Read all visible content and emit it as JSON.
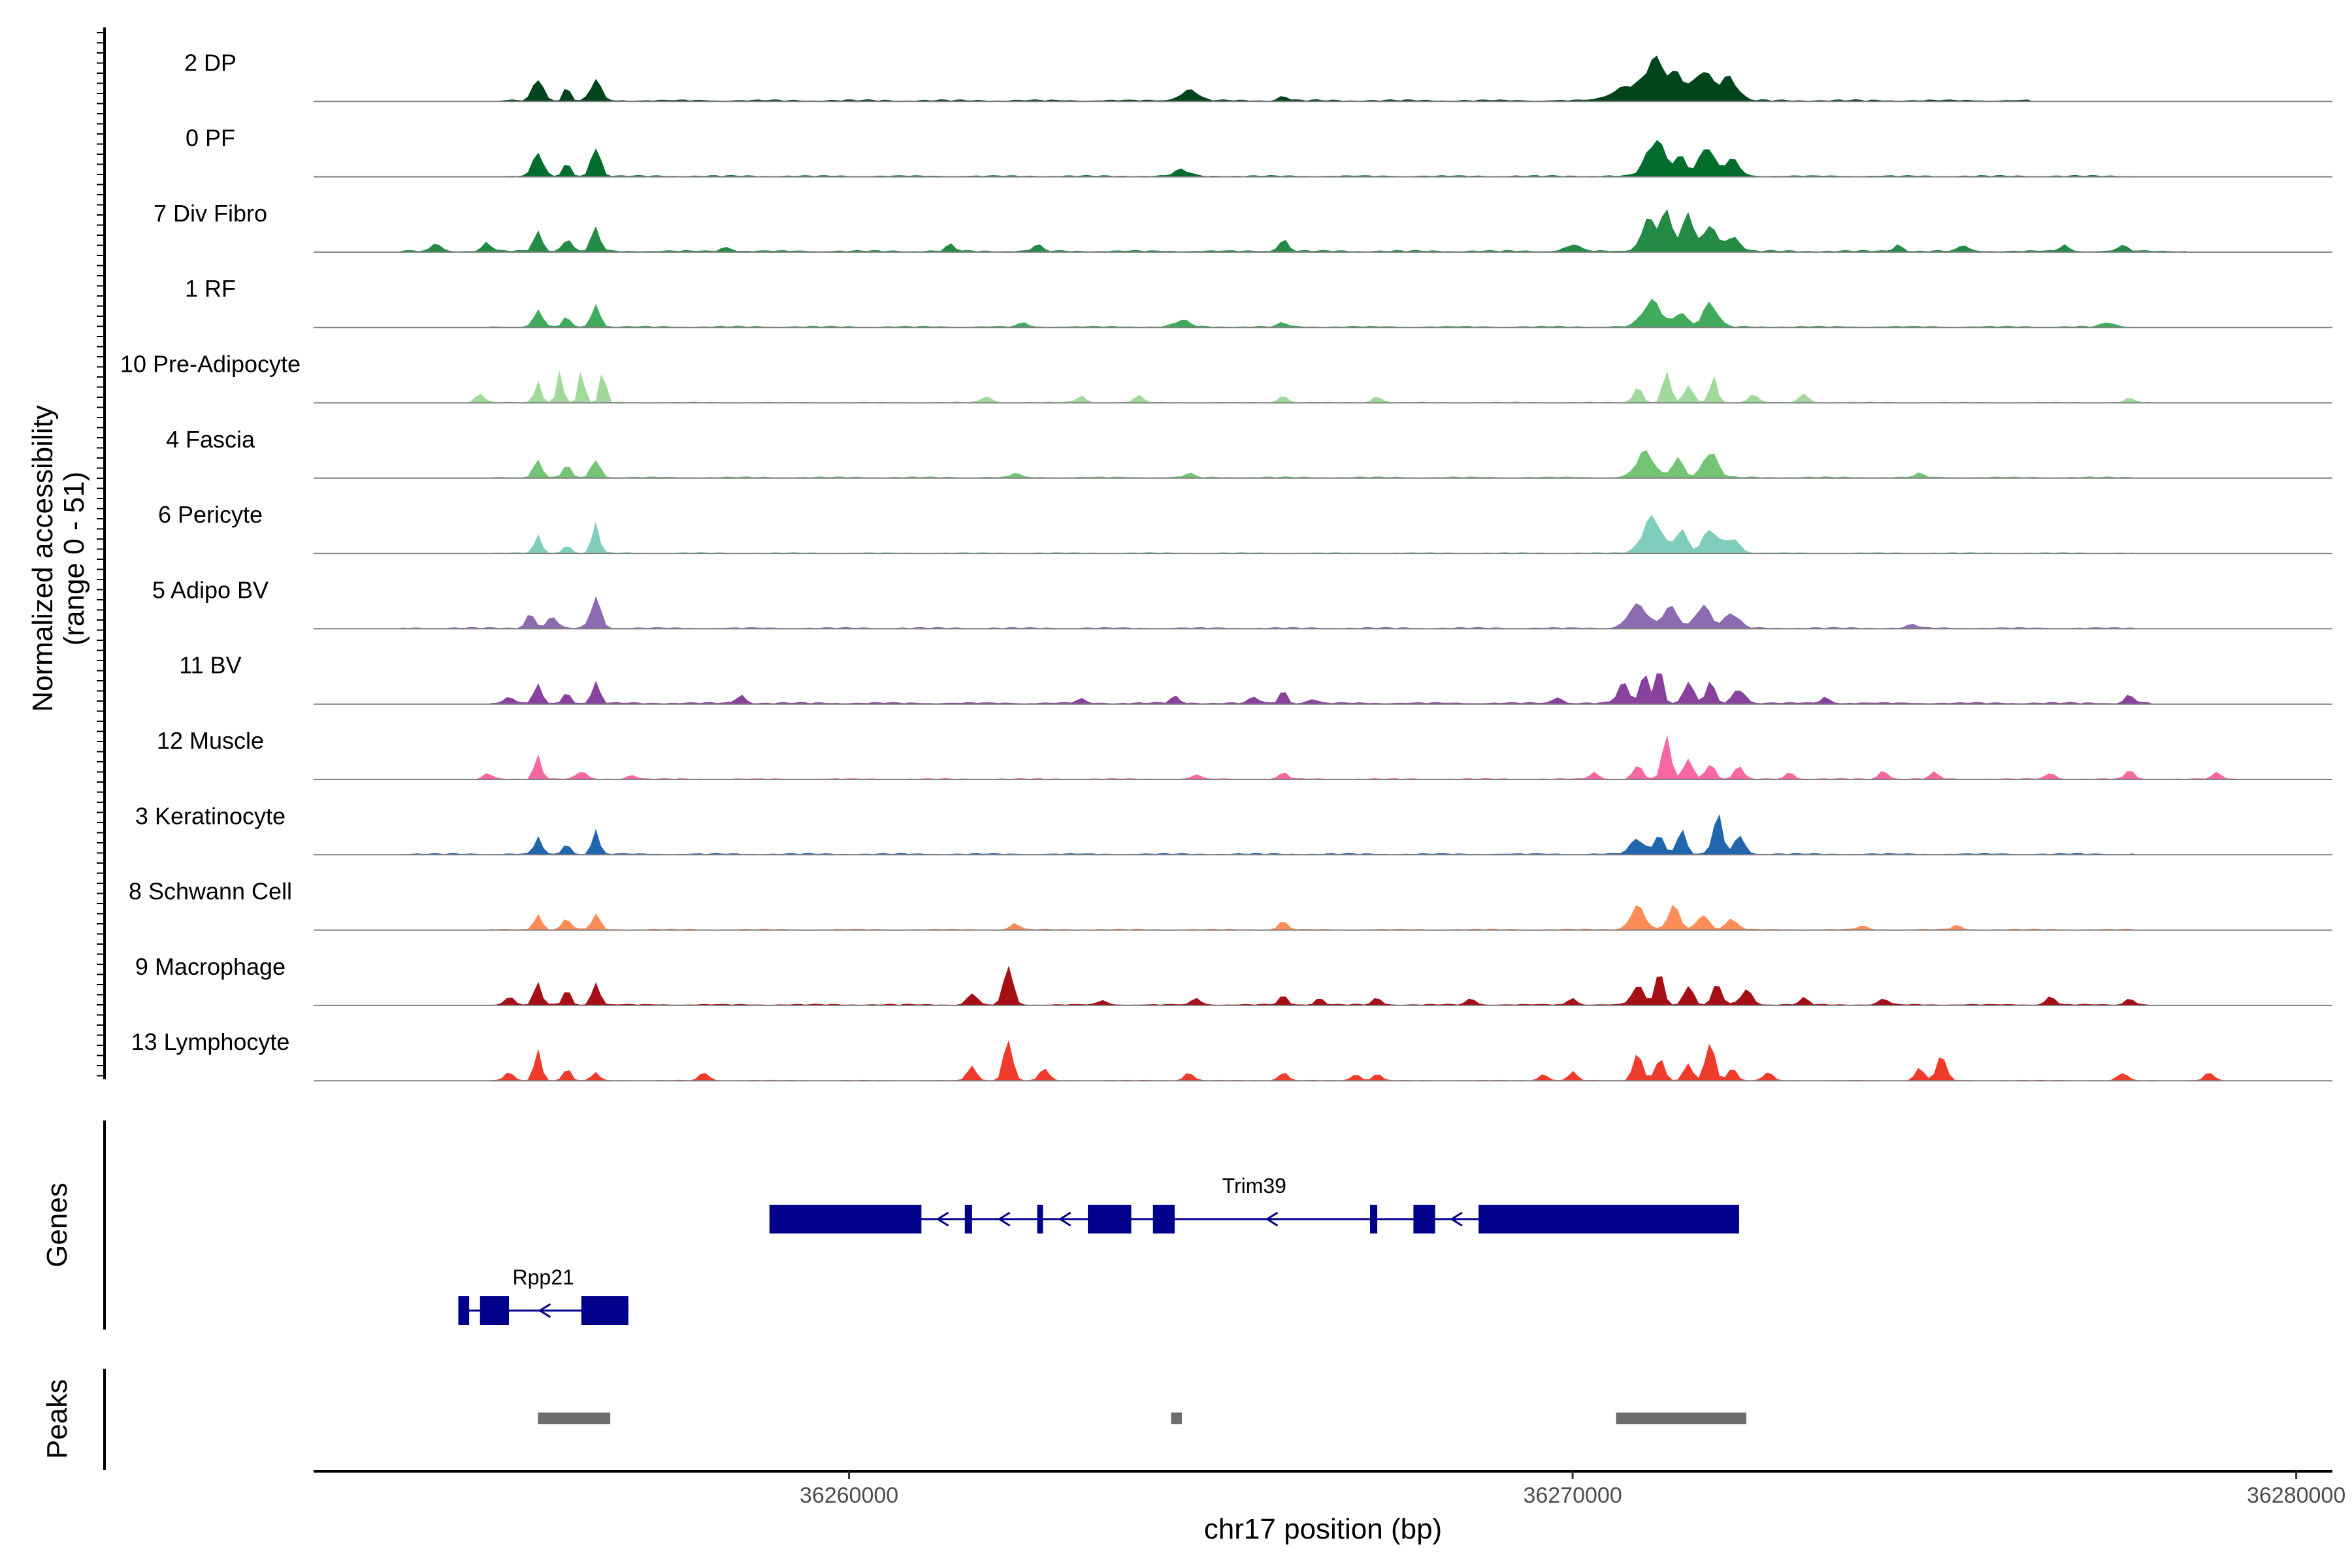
{
  "chart_data": {
    "type": "area",
    "title": "",
    "xlabel": "chr17 position (bp)",
    "ylabel_line1": "Normalized accessibility",
    "ylabel_line2": "(range 0 - 51)",
    "y_range": [
      0,
      51
    ],
    "xlim": [
      36252600,
      36280500
    ],
    "x_ticks": [
      36260000,
      36270000,
      36280000
    ],
    "x_tick_labels": [
      "36260000",
      "36270000",
      "36280000"
    ],
    "tracks": [
      {
        "label": "2 DP",
        "color": "#00441b",
        "peaks": [
          [
            36255700,
            0.55,
            70
          ],
          [
            36256100,
            0.34,
            40
          ],
          [
            36256500,
            0.5,
            70
          ],
          [
            36264700,
            0.25,
            120
          ],
          [
            36266000,
            0.1,
            60
          ],
          [
            36270800,
            0.36,
            220
          ],
          [
            36271150,
            0.9,
            120
          ],
          [
            36271450,
            0.6,
            100
          ],
          [
            36271800,
            0.7,
            120
          ],
          [
            36272150,
            0.55,
            120
          ]
        ],
        "noise": 0.05,
        "span": [
          36255200,
          36276300
        ]
      },
      {
        "label": "0 PF",
        "color": "#006d2c",
        "peaks": [
          [
            36255700,
            0.55,
            70
          ],
          [
            36256100,
            0.3,
            50
          ],
          [
            36256500,
            0.78,
            60
          ],
          [
            36264600,
            0.15,
            100
          ],
          [
            36271150,
            0.85,
            130
          ],
          [
            36271500,
            0.45,
            80
          ],
          [
            36271850,
            0.7,
            100
          ],
          [
            36272200,
            0.4,
            100
          ]
        ],
        "noise": 0.04,
        "span": [
          36255200,
          36277800
        ]
      },
      {
        "label": "7 Div Fibro",
        "color": "#238b45",
        "peaks": [
          [
            36254300,
            0.2,
            60
          ],
          [
            36255000,
            0.2,
            60
          ],
          [
            36255700,
            0.45,
            60
          ],
          [
            36256100,
            0.3,
            60
          ],
          [
            36256500,
            0.55,
            60
          ],
          [
            36258300,
            0.12,
            60
          ],
          [
            36261400,
            0.15,
            60
          ],
          [
            36262600,
            0.15,
            60
          ],
          [
            36266000,
            0.3,
            60
          ],
          [
            36270000,
            0.15,
            100
          ],
          [
            36271050,
            0.75,
            100
          ],
          [
            36271300,
            0.9,
            80
          ],
          [
            36271600,
            0.9,
            80
          ],
          [
            36271900,
            0.65,
            80
          ],
          [
            36272200,
            0.35,
            100
          ],
          [
            36274500,
            0.15,
            60
          ],
          [
            36275400,
            0.15,
            60
          ],
          [
            36276800,
            0.15,
            60
          ],
          [
            36277600,
            0.15,
            60
          ]
        ],
        "noise": 0.05,
        "span": [
          36253800,
          36278500
        ]
      },
      {
        "label": "1 RF",
        "color": "#41ab5d",
        "peaks": [
          [
            36255700,
            0.4,
            60
          ],
          [
            36256100,
            0.25,
            50
          ],
          [
            36256500,
            0.5,
            60
          ],
          [
            36262400,
            0.1,
            60
          ],
          [
            36264600,
            0.15,
            100
          ],
          [
            36266000,
            0.1,
            60
          ],
          [
            36271100,
            0.6,
            130
          ],
          [
            36271500,
            0.35,
            80
          ],
          [
            36271900,
            0.55,
            100
          ],
          [
            36277400,
            0.1,
            80
          ]
        ],
        "noise": 0.04,
        "span": [
          36255000,
          36277800
        ]
      },
      {
        "label": "10 Pre-Adipocyte",
        "color": "#a1d99b",
        "peaks": [
          [
            36254900,
            0.2,
            60
          ],
          [
            36255700,
            0.6,
            40
          ],
          [
            36256000,
            0.8,
            40
          ],
          [
            36256300,
            0.75,
            40
          ],
          [
            36256600,
            0.75,
            40
          ],
          [
            36261900,
            0.15,
            60
          ],
          [
            36263200,
            0.15,
            60
          ],
          [
            36264000,
            0.15,
            60
          ],
          [
            36266000,
            0.15,
            60
          ],
          [
            36267300,
            0.15,
            60
          ],
          [
            36270900,
            0.35,
            60
          ],
          [
            36271300,
            0.85,
            50
          ],
          [
            36271600,
            0.4,
            60
          ],
          [
            36271950,
            0.6,
            50
          ],
          [
            36272500,
            0.2,
            60
          ],
          [
            36273200,
            0.2,
            60
          ],
          [
            36277700,
            0.1,
            60
          ]
        ],
        "noise": 0.03,
        "span": [
          36254700,
          36278000
        ]
      },
      {
        "label": "4 Fascia",
        "color": "#74c476",
        "peaks": [
          [
            36255700,
            0.4,
            60
          ],
          [
            36256100,
            0.3,
            50
          ],
          [
            36256500,
            0.45,
            60
          ],
          [
            36262300,
            0.1,
            60
          ],
          [
            36264700,
            0.1,
            60
          ],
          [
            36271000,
            0.6,
            120
          ],
          [
            36271450,
            0.45,
            80
          ],
          [
            36271900,
            0.6,
            100
          ],
          [
            36274800,
            0.1,
            60
          ]
        ],
        "noise": 0.04,
        "span": [
          36255000,
          36277800
        ]
      },
      {
        "label": "6 Pericyte",
        "color": "#7fcdbb",
        "peaks": [
          [
            36255700,
            0.4,
            50
          ],
          [
            36256100,
            0.2,
            50
          ],
          [
            36256500,
            0.7,
            50
          ],
          [
            36271100,
            0.85,
            130
          ],
          [
            36271500,
            0.55,
            80
          ],
          [
            36271900,
            0.55,
            100
          ],
          [
            36272200,
            0.35,
            100
          ]
        ],
        "noise": 0.03,
        "span": [
          36255000,
          36277800
        ]
      },
      {
        "label": "5 Adipo BV",
        "color": "#8c6bb1",
        "peaks": [
          [
            36255600,
            0.35,
            60
          ],
          [
            36255900,
            0.3,
            60
          ],
          [
            36256500,
            0.7,
            70
          ],
          [
            36270900,
            0.55,
            130
          ],
          [
            36271350,
            0.5,
            100
          ],
          [
            36271800,
            0.55,
            100
          ],
          [
            36272200,
            0.35,
            100
          ],
          [
            36274700,
            0.1,
            60
          ]
        ],
        "noise": 0.04,
        "span": [
          36253800,
          36277800
        ]
      },
      {
        "label": "11 BV",
        "color": "#88419d",
        "peaks": [
          [
            36255300,
            0.15,
            60
          ],
          [
            36255700,
            0.5,
            50
          ],
          [
            36256100,
            0.25,
            50
          ],
          [
            36256500,
            0.55,
            50
          ],
          [
            36258500,
            0.2,
            60
          ],
          [
            36263200,
            0.1,
            60
          ],
          [
            36264500,
            0.15,
            60
          ],
          [
            36265600,
            0.15,
            60
          ],
          [
            36266000,
            0.3,
            50
          ],
          [
            36266400,
            0.1,
            60
          ],
          [
            36269800,
            0.15,
            60
          ],
          [
            36270700,
            0.45,
            80
          ],
          [
            36271000,
            0.7,
            60
          ],
          [
            36271200,
            0.85,
            50
          ],
          [
            36271600,
            0.55,
            60
          ],
          [
            36271900,
            0.5,
            60
          ],
          [
            36272300,
            0.35,
            80
          ],
          [
            36273500,
            0.15,
            60
          ],
          [
            36277700,
            0.2,
            60
          ]
        ],
        "noise": 0.05,
        "span": [
          36255000,
          36278000
        ]
      },
      {
        "label": "12 Muscle",
        "color": "#f768a1",
        "peaks": [
          [
            36255000,
            0.15,
            60
          ],
          [
            36255700,
            0.55,
            50
          ],
          [
            36256300,
            0.2,
            60
          ],
          [
            36257000,
            0.1,
            60
          ],
          [
            36264800,
            0.1,
            60
          ],
          [
            36266000,
            0.15,
            60
          ],
          [
            36270300,
            0.15,
            60
          ],
          [
            36270900,
            0.35,
            60
          ],
          [
            36271300,
            1.0,
            60
          ],
          [
            36271600,
            0.5,
            60
          ],
          [
            36271900,
            0.4,
            60
          ],
          [
            36272300,
            0.3,
            60
          ],
          [
            36273000,
            0.15,
            60
          ],
          [
            36274300,
            0.2,
            60
          ],
          [
            36275000,
            0.15,
            60
          ],
          [
            36276600,
            0.15,
            60
          ],
          [
            36277700,
            0.2,
            60
          ],
          [
            36278900,
            0.15,
            60
          ]
        ],
        "noise": 0.03,
        "span": [
          36255000,
          36279200
        ]
      },
      {
        "label": "3 Keratinocyte",
        "color": "#2166ac",
        "peaks": [
          [
            36255700,
            0.4,
            50
          ],
          [
            36256100,
            0.25,
            50
          ],
          [
            36256500,
            0.55,
            50
          ],
          [
            36270900,
            0.35,
            100
          ],
          [
            36271200,
            0.5,
            60
          ],
          [
            36271500,
            0.6,
            60
          ],
          [
            36272000,
            1.0,
            60
          ],
          [
            36272300,
            0.4,
            80
          ]
        ],
        "noise": 0.04,
        "span": [
          36253800,
          36277800
        ]
      },
      {
        "label": "8 Schwann Cell",
        "color": "#fc8d59",
        "peaks": [
          [
            36255700,
            0.4,
            50
          ],
          [
            36256100,
            0.25,
            60
          ],
          [
            36256500,
            0.35,
            60
          ],
          [
            36262300,
            0.15,
            60
          ],
          [
            36266000,
            0.2,
            60
          ],
          [
            36270900,
            0.55,
            100
          ],
          [
            36271400,
            0.55,
            80
          ],
          [
            36271800,
            0.35,
            80
          ],
          [
            36272200,
            0.25,
            80
          ],
          [
            36274000,
            0.1,
            60
          ],
          [
            36275300,
            0.1,
            60
          ]
        ],
        "noise": 0.03,
        "span": [
          36255000,
          36277800
        ]
      },
      {
        "label": "9 Macrophage",
        "color": "#a50f15",
        "peaks": [
          [
            36255300,
            0.2,
            60
          ],
          [
            36255700,
            0.55,
            50
          ],
          [
            36256100,
            0.35,
            50
          ],
          [
            36256500,
            0.6,
            50
          ],
          [
            36261700,
            0.3,
            60
          ],
          [
            36262200,
            1.0,
            60
          ],
          [
            36263500,
            0.1,
            60
          ],
          [
            36264800,
            0.15,
            60
          ],
          [
            36266000,
            0.2,
            60
          ],
          [
            36266500,
            0.15,
            60
          ],
          [
            36267300,
            0.15,
            60
          ],
          [
            36268600,
            0.15,
            60
          ],
          [
            36270000,
            0.15,
            60
          ],
          [
            36270900,
            0.45,
            80
          ],
          [
            36271200,
            0.75,
            60
          ],
          [
            36271600,
            0.5,
            60
          ],
          [
            36272000,
            0.5,
            60
          ],
          [
            36272400,
            0.35,
            80
          ],
          [
            36273200,
            0.15,
            60
          ],
          [
            36274300,
            0.15,
            60
          ],
          [
            36276600,
            0.2,
            60
          ],
          [
            36277700,
            0.15,
            60
          ]
        ],
        "noise": 0.04,
        "span": [
          36255000,
          36278000
        ]
      },
      {
        "label": "13 Lymphocyte",
        "color": "#ef3b2c",
        "peaks": [
          [
            36255300,
            0.2,
            60
          ],
          [
            36255700,
            0.7,
            50
          ],
          [
            36256100,
            0.3,
            50
          ],
          [
            36256500,
            0.2,
            50
          ],
          [
            36258000,
            0.2,
            60
          ],
          [
            36261700,
            0.35,
            60
          ],
          [
            36262200,
            1.0,
            60
          ],
          [
            36262700,
            0.3,
            60
          ],
          [
            36264700,
            0.2,
            60
          ],
          [
            36266000,
            0.2,
            60
          ],
          [
            36267000,
            0.15,
            60
          ],
          [
            36267300,
            0.15,
            60
          ],
          [
            36269600,
            0.15,
            60
          ],
          [
            36270000,
            0.2,
            60
          ],
          [
            36270900,
            0.7,
            60
          ],
          [
            36271200,
            0.55,
            60
          ],
          [
            36271600,
            0.4,
            60
          ],
          [
            36271900,
            1.0,
            60
          ],
          [
            36272200,
            0.3,
            60
          ],
          [
            36272700,
            0.2,
            60
          ],
          [
            36274800,
            0.3,
            60
          ],
          [
            36275100,
            0.65,
            60
          ],
          [
            36277600,
            0.2,
            60
          ],
          [
            36278800,
            0.2,
            60
          ]
        ],
        "noise": 0.02,
        "span": [
          36255000,
          36279000
        ]
      }
    ],
    "genes": [
      {
        "name": "Trim39",
        "strand": "-",
        "start": 36258900,
        "end": 36272300,
        "exons": [
          [
            36258900,
            36261000
          ],
          [
            36261600,
            36261700
          ],
          [
            36262600,
            36262680
          ],
          [
            36263300,
            36263900
          ],
          [
            36264200,
            36264500
          ],
          [
            36267200,
            36267300
          ],
          [
            36267800,
            36268100
          ],
          [
            36268700,
            36272300
          ]
        ]
      },
      {
        "name": "Rpp21",
        "strand": "-",
        "start": 36254600,
        "end": 36256950,
        "exons": [
          [
            36254600,
            36254750
          ],
          [
            36254900,
            36255300
          ],
          [
            36256300,
            36256950
          ]
        ]
      }
    ],
    "genes_label": "Genes",
    "peaks_label": "Peaks",
    "peak_regions": [
      [
        36255700,
        36256700
      ],
      [
        36264450,
        36264600
      ],
      [
        36270600,
        36272400
      ]
    ]
  }
}
